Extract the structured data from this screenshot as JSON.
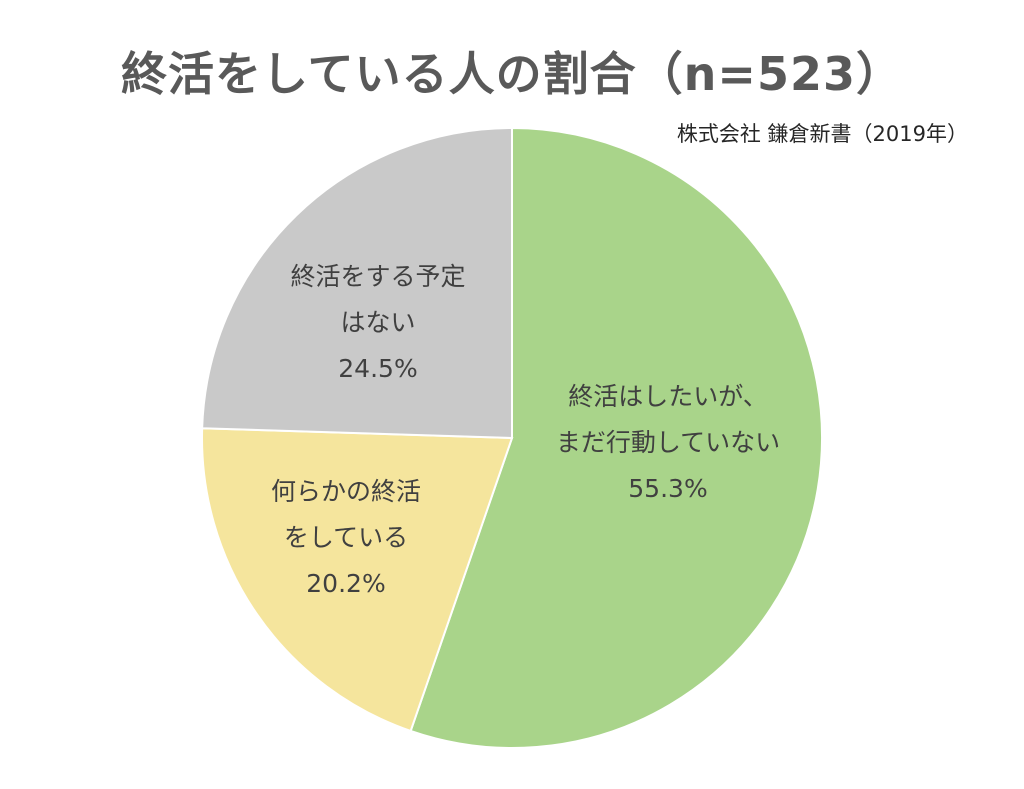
{
  "chart_data": {
    "type": "pie",
    "title": "終活をしている人の割合（n=523）",
    "subtitle": "株式会社 鎌倉新書（2019年）",
    "colors": [
      "#a9d48a",
      "#f5e59d",
      "#c9c9c9"
    ],
    "slices": [
      {
        "label_lines": [
          "終活はしたいが、",
          "まだ行動していない"
        ],
        "value": 55.3,
        "value_text": "55.3%"
      },
      {
        "label_lines": [
          "何らかの終活",
          "をしている"
        ],
        "value": 20.2,
        "value_text": "20.2%"
      },
      {
        "label_lines": [
          "終活をする予定",
          "はない"
        ],
        "value": 24.5,
        "value_text": "24.5%"
      }
    ]
  }
}
